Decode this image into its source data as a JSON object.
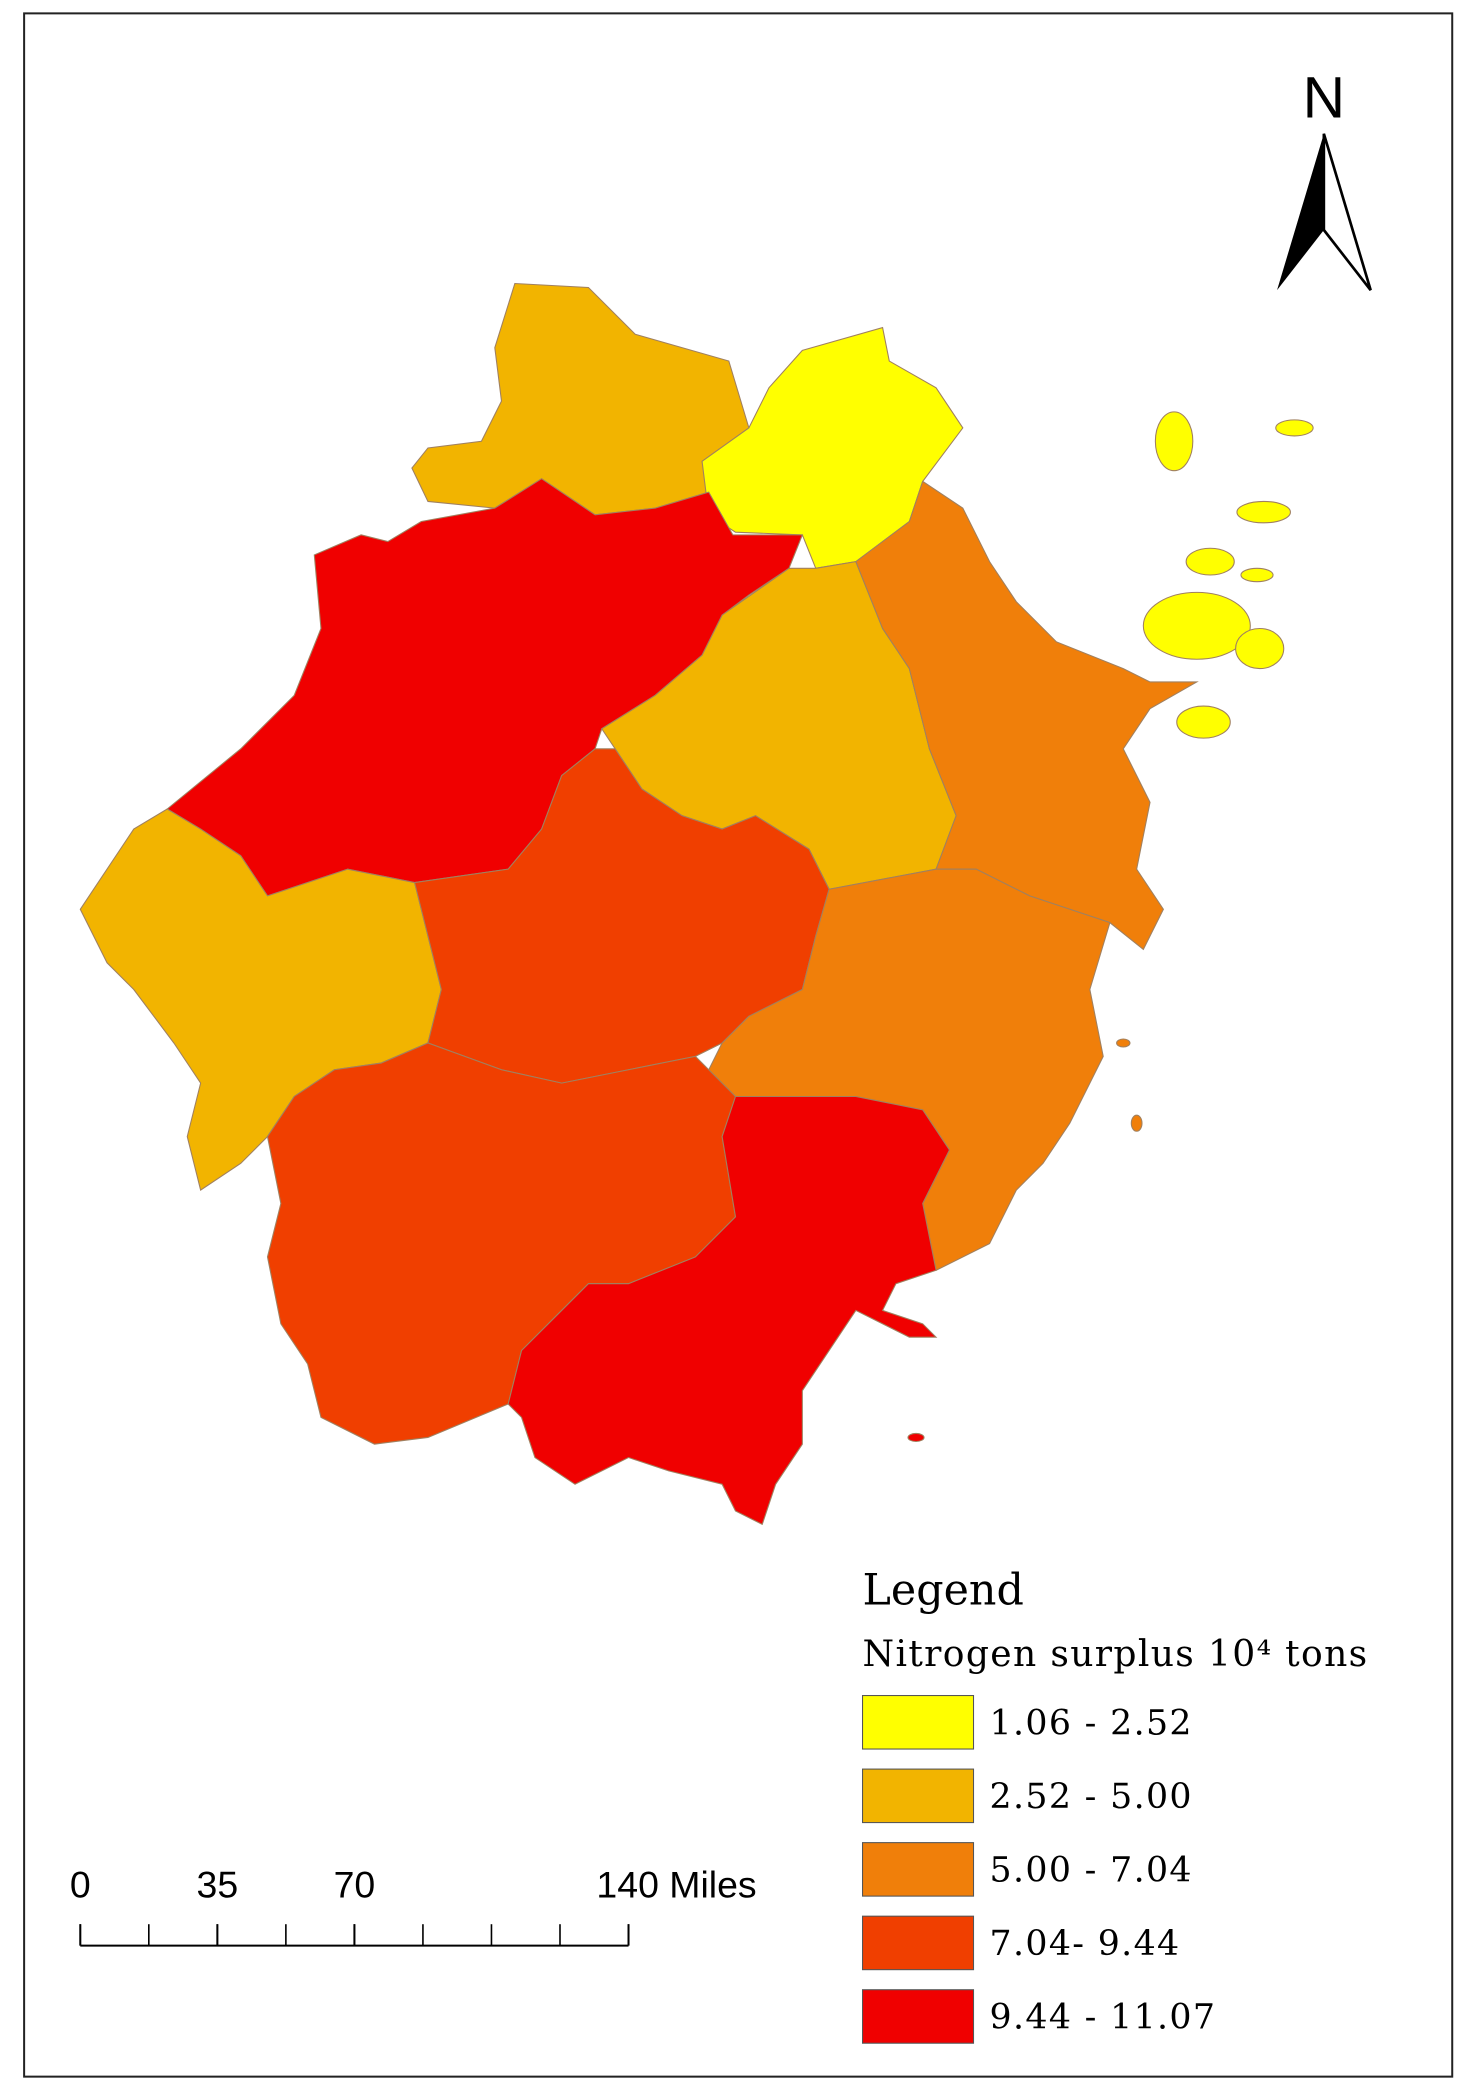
{
  "map": {
    "north_label": "N",
    "legend": {
      "title": "Legend",
      "subtitle": "Nitrogen surplus 10⁴ tons",
      "classes": [
        {
          "label": "1.06 - 2.52",
          "color": "#ffff00"
        },
        {
          "label": "2.52 - 5.00",
          "color": "#f2b400"
        },
        {
          "label": "5.00 - 7.04",
          "color": "#f07f0a"
        },
        {
          "label": "7.04- 9.44",
          "color": "#f03f00"
        },
        {
          "label": "9.44 - 11.07",
          "color": "#f00000"
        }
      ]
    },
    "scale_bar": {
      "ticks": [
        0,
        35,
        70,
        {
          "value": 140,
          "label": "140 Miles"
        }
      ]
    }
  }
}
